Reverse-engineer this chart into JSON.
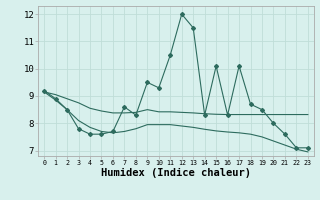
{
  "x": [
    0,
    1,
    2,
    3,
    4,
    5,
    6,
    7,
    8,
    9,
    10,
    11,
    12,
    13,
    14,
    15,
    16,
    17,
    18,
    19,
    20,
    21,
    22,
    23
  ],
  "line_main": [
    9.2,
    8.9,
    8.5,
    7.8,
    7.6,
    7.6,
    7.7,
    8.6,
    8.3,
    9.5,
    9.3,
    10.5,
    12.0,
    11.5,
    8.3,
    10.1,
    8.3,
    10.1,
    8.7,
    8.5,
    8.0,
    7.6,
    7.1,
    7.1
  ],
  "line_upper": [
    9.15,
    9.05,
    8.9,
    8.75,
    8.55,
    8.45,
    8.38,
    8.38,
    8.4,
    8.5,
    8.42,
    8.42,
    8.4,
    8.38,
    8.35,
    8.33,
    8.32,
    8.32,
    8.32,
    8.32,
    8.32,
    8.32,
    8.32,
    8.32
  ],
  "line_lower": [
    9.15,
    8.85,
    8.5,
    8.1,
    7.85,
    7.7,
    7.65,
    7.7,
    7.8,
    7.95,
    7.95,
    7.95,
    7.9,
    7.85,
    7.78,
    7.72,
    7.68,
    7.65,
    7.6,
    7.5,
    7.35,
    7.2,
    7.05,
    6.95
  ],
  "line_color": "#2d6b5e",
  "bg_color": "#d8f0ed",
  "grid_color": "#c0ddd8",
  "ylim": [
    6.8,
    12.3
  ],
  "yticks": [
    7,
    8,
    9,
    10,
    11,
    12
  ],
  "xlabel": "Humidex (Indice chaleur)",
  "xlabel_fontsize": 7.5
}
